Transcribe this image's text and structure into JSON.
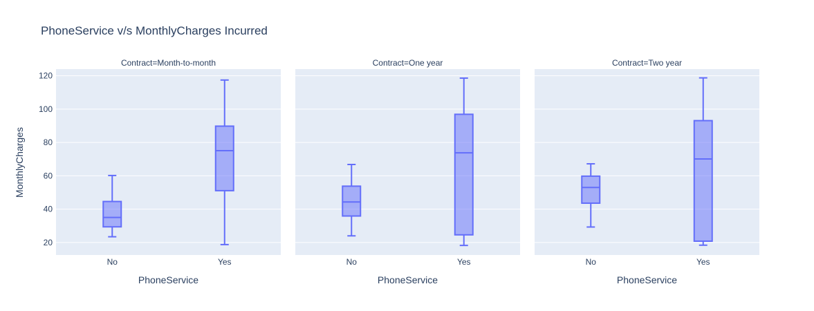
{
  "chart_data": {
    "type": "box",
    "title": "PhoneService v/s MonthlyCharges Incurred",
    "ylabel": "MonthlyCharges",
    "xlabel": "PhoneService",
    "ylim": [
      12.5,
      124
    ],
    "yticks": [
      20,
      40,
      60,
      80,
      100,
      120
    ],
    "categories": [
      "No",
      "Yes"
    ],
    "box_color": "#636efa",
    "plot_bg": "#e5ecf6",
    "facets": [
      {
        "title": "Contract=Month-to-month",
        "boxes": [
          {
            "category": "No",
            "min": 23.45,
            "q1": 29.4,
            "median": 35.05,
            "q3": 44.6,
            "max": 60.2
          },
          {
            "category": "Yes",
            "min": 18.75,
            "q1": 51.1,
            "median": 75.1,
            "q3": 89.8,
            "max": 117.45
          }
        ]
      },
      {
        "title": "Contract=One year",
        "boxes": [
          {
            "category": "No",
            "min": 24.0,
            "q1": 35.9,
            "median": 44.3,
            "q3": 53.8,
            "max": 66.8
          },
          {
            "category": "Yes",
            "min": 18.25,
            "q1": 24.6,
            "median": 73.8,
            "q3": 96.9,
            "max": 118.6
          }
        ]
      },
      {
        "title": "Contract=Two year",
        "boxes": [
          {
            "category": "No",
            "min": 29.3,
            "q1": 43.6,
            "median": 53.0,
            "q3": 59.8,
            "max": 67.2
          },
          {
            "category": "Yes",
            "min": 18.4,
            "q1": 20.8,
            "median": 70.1,
            "q3": 93.1,
            "max": 118.75
          }
        ]
      }
    ]
  }
}
